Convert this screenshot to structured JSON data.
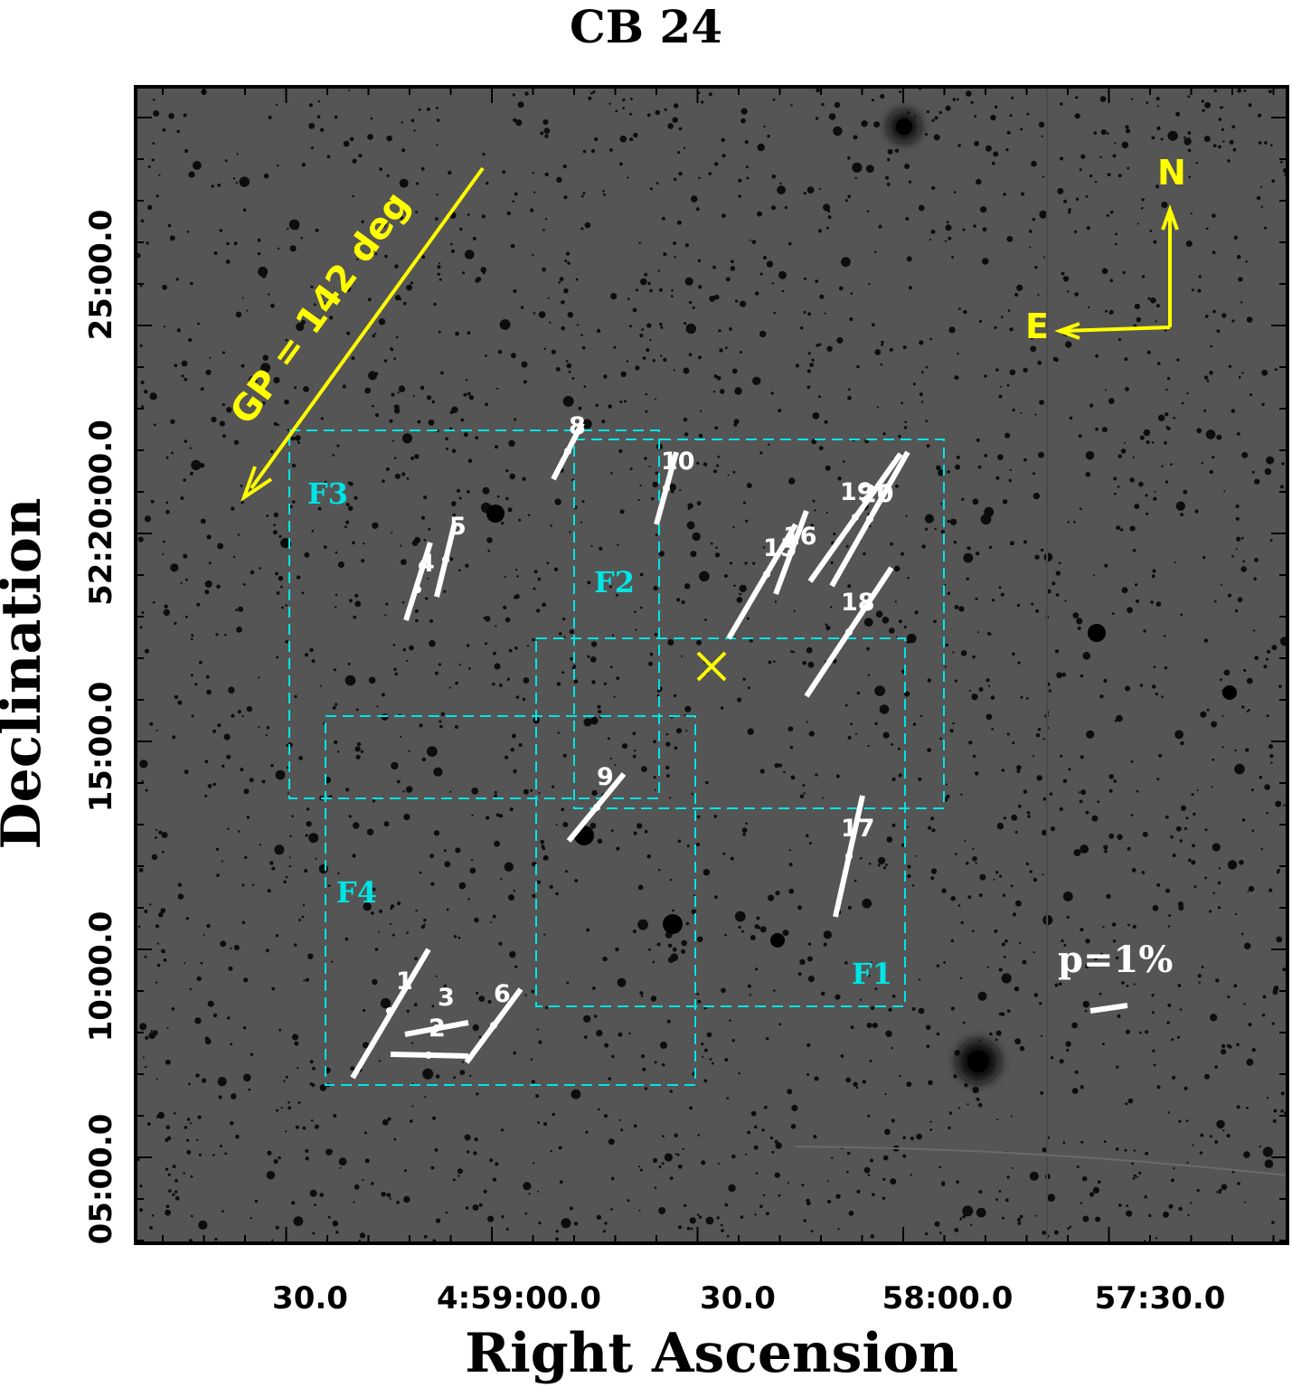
{
  "title": "CB 24",
  "axes": {
    "x_label": "Right Ascension",
    "y_label": "Declination",
    "x_ticks": [
      "30.0",
      "4:59:00.0",
      "30.0",
      "58:00.0",
      "57:30.0"
    ],
    "y_ticks": [
      "25:00.0",
      "52:20:00.0",
      "15:00.0",
      "10:00.0",
      "05:00.0"
    ]
  },
  "fields": [
    {
      "label": "F1"
    },
    {
      "label": "F2"
    },
    {
      "label": "F3"
    },
    {
      "label": "F4"
    }
  ],
  "gp_label": "GP = 142 deg",
  "compass": {
    "north": "N",
    "east": "E"
  },
  "scale_label": "p=1%",
  "star_labels": [
    "1",
    "2",
    "3",
    "4",
    "5",
    "6",
    "8",
    "9",
    "10",
    "15",
    "16",
    "17",
    "18",
    "19",
    "20"
  ],
  "colors": {
    "background": "#555555",
    "field_box": "#00e5e5",
    "annotation": "#ffff00",
    "vectors": "#ffffff",
    "stars": "#0d0d0d"
  }
}
